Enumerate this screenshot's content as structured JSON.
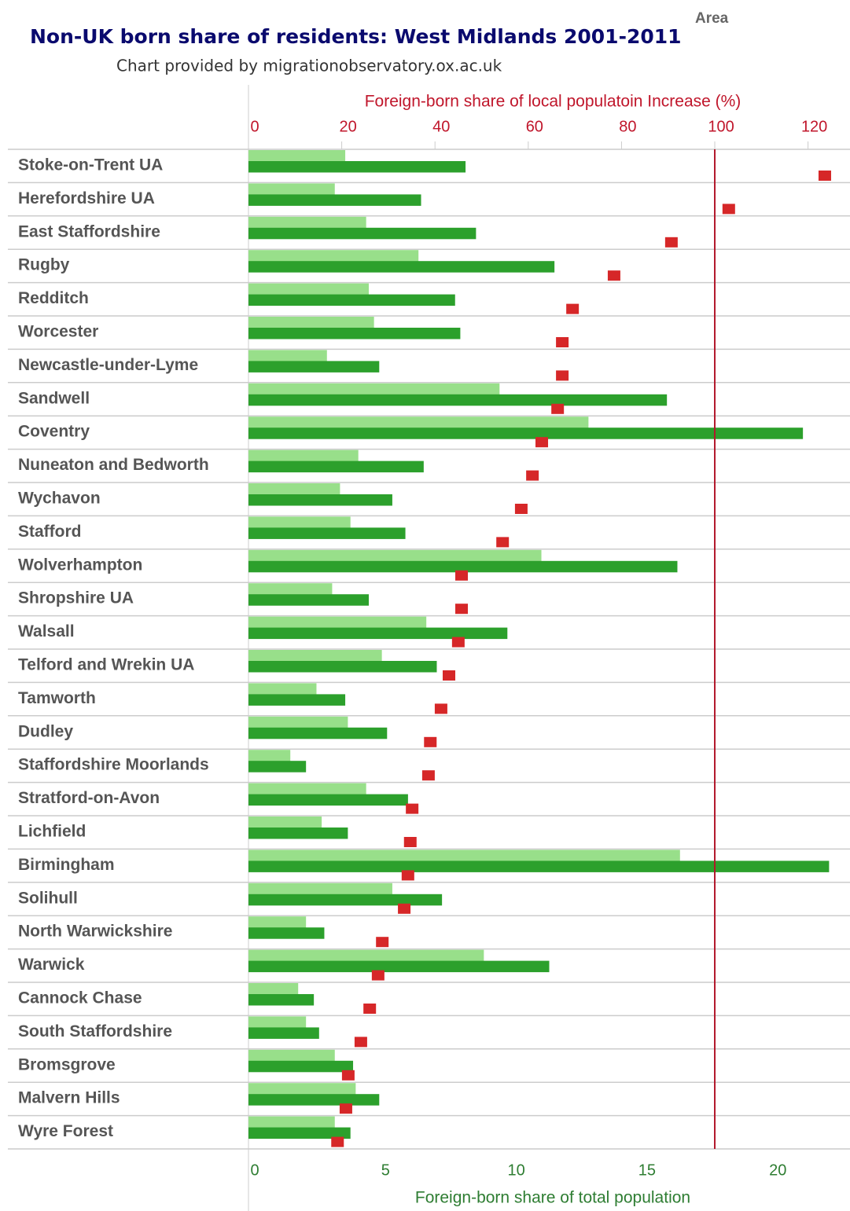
{
  "chart_data": {
    "type": "bar",
    "title": "Non-UK born share of residents: West Midlands 2001-2011",
    "subtitle": "Chart provided by migrationobservatory.ox.ac.uk",
    "header": "Area",
    "categories": [
      "Stoke-on-Trent UA",
      "Herefordshire UA",
      "East Staffordshire",
      "Rugby",
      "Redditch",
      "Worcester",
      "Newcastle-under-Lyme",
      "Sandwell",
      "Coventry",
      "Nuneaton and Bedworth",
      "Wychavon",
      "Stafford",
      "Wolverhampton",
      "Shropshire UA",
      "Walsall",
      "Telford and Wrekin UA",
      "Tamworth",
      "Dudley",
      "Staffordshire Moorlands",
      "Stratford-on-Avon",
      "Lichfield",
      "Birmingham",
      "Solihull",
      "North Warwickshire",
      "Warwick",
      "Cannock Chase",
      "South Staffordshire",
      "Bromsgrove",
      "Malvern Hills",
      "Wyre Forest"
    ],
    "xlabel": "Foreign-born share of total population",
    "x2label": "Foreign-born share of local populatoin Increase (%)",
    "xlim": [
      0,
      23
    ],
    "xticks": [
      0,
      5,
      10,
      15,
      20
    ],
    "x2lim": [
      0,
      129
    ],
    "x2ticks": [
      0,
      20,
      40,
      60,
      80,
      100,
      120
    ],
    "x2_reference": 100,
    "reference_color": "#b2182b",
    "series": [
      {
        "color": "#98df8a",
        "values": [
          3.7,
          3.3,
          4.5,
          6.5,
          4.6,
          4.8,
          3.0,
          9.6,
          13.0,
          4.2,
          3.5,
          3.9,
          11.2,
          3.2,
          6.8,
          5.1,
          2.6,
          3.8,
          1.6,
          4.5,
          2.8,
          16.5,
          5.5,
          2.2,
          9.0,
          1.9,
          2.2,
          3.3,
          4.1,
          3.3
        ]
      },
      {
        "color": "#2ca02c",
        "values": [
          8.3,
          6.6,
          8.7,
          11.7,
          7.9,
          8.1,
          5.0,
          16.0,
          21.2,
          6.7,
          5.5,
          6.0,
          16.4,
          4.6,
          9.9,
          7.2,
          3.7,
          5.3,
          2.2,
          6.1,
          3.8,
          22.2,
          7.4,
          2.9,
          11.5,
          2.5,
          2.7,
          4.0,
          5.0,
          3.9
        ]
      },
      {
        "color": "#d62728",
        "axis": "x2",
        "marker": "square",
        "values": [
          123.6,
          103,
          90.7,
          78.4,
          69.5,
          67.3,
          67.3,
          66.3,
          62.9,
          60.9,
          58.5,
          54.5,
          45.7,
          45.7,
          45.0,
          43.0,
          41.3,
          39.0,
          38.6,
          35.1,
          34.7,
          34.2,
          33.4,
          28.7,
          27.8,
          26.0,
          24.1,
          21.4,
          20.9,
          19.1
        ]
      }
    ]
  }
}
